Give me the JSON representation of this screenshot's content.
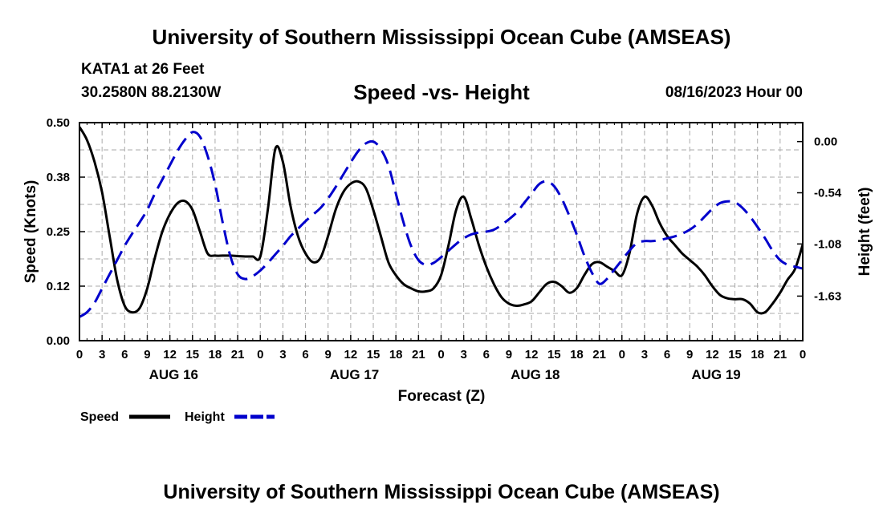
{
  "header": {
    "title": "University of Southern Mississippi Ocean Cube (AMSEAS)",
    "station": "KATA1 at 26 Feet",
    "coords": "30.2580N  88.2130W",
    "chart_title": "Speed -vs- Height",
    "datetime": "08/16/2023 Hour 00"
  },
  "footer": {
    "title": "University of Southern Mississippi Ocean Cube (AMSEAS)"
  },
  "colors": {
    "speed": "#000000",
    "height": "#0000cc",
    "grid": "#aaaaaa"
  },
  "chart_data": {
    "type": "line",
    "title": "Speed -vs- Height",
    "xlabel": "Forecast (Z)",
    "ylabel": "Speed (Knots)",
    "y2label": "Height (feet)",
    "xlim": [
      0,
      96
    ],
    "ylim": [
      0,
      0.5
    ],
    "y2lim": [
      -2.1,
      0.2
    ],
    "yticks": [
      "0.00",
      "0.12",
      "0.25",
      "0.38",
      "0.50"
    ],
    "y2ticks": [
      "0.00",
      "-0.54",
      "-1.08",
      "-1.63"
    ],
    "xticks": [
      "0",
      "3",
      "6",
      "9",
      "12",
      "15",
      "18",
      "21",
      "0",
      "3",
      "6",
      "9",
      "12",
      "15",
      "18",
      "21",
      "0",
      "3",
      "6",
      "9",
      "12",
      "15",
      "18",
      "21",
      "0",
      "3",
      "6",
      "9",
      "12",
      "15",
      "18",
      "21",
      "0"
    ],
    "day_labels": [
      "AUG 16",
      "AUG 17",
      "AUG 18",
      "AUG 19"
    ],
    "legend": [
      "Speed",
      "Height"
    ],
    "legend_position": "bottom-left",
    "series": [
      {
        "name": "Speed",
        "axis": "left",
        "style": "solid",
        "x": [
          0,
          1,
          2,
          3,
          4,
          5,
          6,
          7,
          8,
          9,
          10,
          11,
          12,
          13,
          14,
          15,
          16,
          17,
          18,
          19,
          20,
          21,
          22,
          23,
          24,
          25,
          26,
          27,
          28,
          29,
          30,
          31,
          32,
          33,
          34,
          35,
          36,
          37,
          38,
          39,
          40,
          41,
          42,
          43,
          44,
          45,
          46,
          47,
          48,
          49,
          50,
          51,
          52,
          53,
          54,
          55,
          56,
          57,
          58,
          59,
          60,
          61,
          62,
          63,
          64,
          65,
          66,
          67,
          68,
          69,
          70,
          71,
          72,
          73,
          74,
          75,
          76,
          77,
          78,
          79,
          80,
          81,
          82,
          83,
          84,
          85,
          86,
          87,
          88,
          89,
          90,
          91,
          92,
          93,
          94,
          95,
          96
        ],
        "values": [
          0.49,
          0.46,
          0.41,
          0.34,
          0.24,
          0.14,
          0.08,
          0.065,
          0.075,
          0.12,
          0.19,
          0.25,
          0.29,
          0.315,
          0.32,
          0.3,
          0.25,
          0.2,
          0.195,
          0.195,
          0.195,
          0.194,
          0.193,
          0.193,
          0.193,
          0.3,
          0.44,
          0.41,
          0.31,
          0.24,
          0.2,
          0.18,
          0.19,
          0.24,
          0.3,
          0.34,
          0.36,
          0.365,
          0.35,
          0.3,
          0.24,
          0.18,
          0.15,
          0.13,
          0.12,
          0.113,
          0.113,
          0.12,
          0.15,
          0.22,
          0.3,
          0.33,
          0.28,
          0.22,
          0.17,
          0.13,
          0.1,
          0.085,
          0.08,
          0.083,
          0.09,
          0.11,
          0.13,
          0.135,
          0.125,
          0.11,
          0.12,
          0.15,
          0.175,
          0.18,
          0.17,
          0.16,
          0.15,
          0.2,
          0.29,
          0.33,
          0.31,
          0.27,
          0.24,
          0.22,
          0.2,
          0.185,
          0.17,
          0.15,
          0.125,
          0.105,
          0.097,
          0.095,
          0.095,
          0.085,
          0.065,
          0.065,
          0.085,
          0.11,
          0.14,
          0.165,
          0.22
        ]
      },
      {
        "name": "Height",
        "axis": "right",
        "style": "dashed",
        "x": [
          0,
          1,
          2,
          3,
          4,
          5,
          6,
          7,
          8,
          9,
          10,
          11,
          12,
          13,
          14,
          15,
          16,
          17,
          18,
          19,
          20,
          21,
          22,
          23,
          24,
          25,
          26,
          27,
          28,
          29,
          30,
          31,
          32,
          33,
          34,
          35,
          36,
          37,
          38,
          39,
          40,
          41,
          42,
          43,
          44,
          45,
          46,
          47,
          48,
          49,
          50,
          51,
          52,
          53,
          54,
          55,
          56,
          57,
          58,
          59,
          60,
          61,
          62,
          63,
          64,
          65,
          66,
          67,
          68,
          69,
          70,
          71,
          72,
          73,
          74,
          75,
          76,
          77,
          78,
          79,
          80,
          81,
          82,
          83,
          84,
          85,
          86,
          87,
          88,
          89,
          90,
          91,
          92,
          93,
          94,
          95,
          96
        ],
        "values": [
          -1.85,
          -1.8,
          -1.7,
          -1.55,
          -1.4,
          -1.25,
          -1.1,
          -0.97,
          -0.85,
          -0.72,
          -0.55,
          -0.4,
          -0.25,
          -0.1,
          0.02,
          0.1,
          0.05,
          -0.15,
          -0.45,
          -0.85,
          -1.2,
          -1.4,
          -1.45,
          -1.42,
          -1.36,
          -1.28,
          -1.19,
          -1.1,
          -1.0,
          -0.92,
          -0.84,
          -0.77,
          -0.7,
          -0.6,
          -0.48,
          -0.35,
          -0.22,
          -0.1,
          -0.02,
          0.0,
          -0.08,
          -0.25,
          -0.55,
          -0.85,
          -1.1,
          -1.25,
          -1.3,
          -1.28,
          -1.22,
          -1.15,
          -1.08,
          -1.02,
          -0.98,
          -0.96,
          -0.95,
          -0.93,
          -0.88,
          -0.82,
          -0.75,
          -0.65,
          -0.55,
          -0.45,
          -0.42,
          -0.47,
          -0.6,
          -0.78,
          -0.98,
          -1.2,
          -1.38,
          -1.5,
          -1.45,
          -1.35,
          -1.25,
          -1.15,
          -1.07,
          -1.05,
          -1.05,
          -1.04,
          -1.02,
          -1.0,
          -0.97,
          -0.93,
          -0.87,
          -0.79,
          -0.71,
          -0.65,
          -0.63,
          -0.64,
          -0.7,
          -0.79,
          -0.9,
          -1.02,
          -1.15,
          -1.25,
          -1.3,
          -1.32,
          -1.34
        ]
      }
    ]
  }
}
